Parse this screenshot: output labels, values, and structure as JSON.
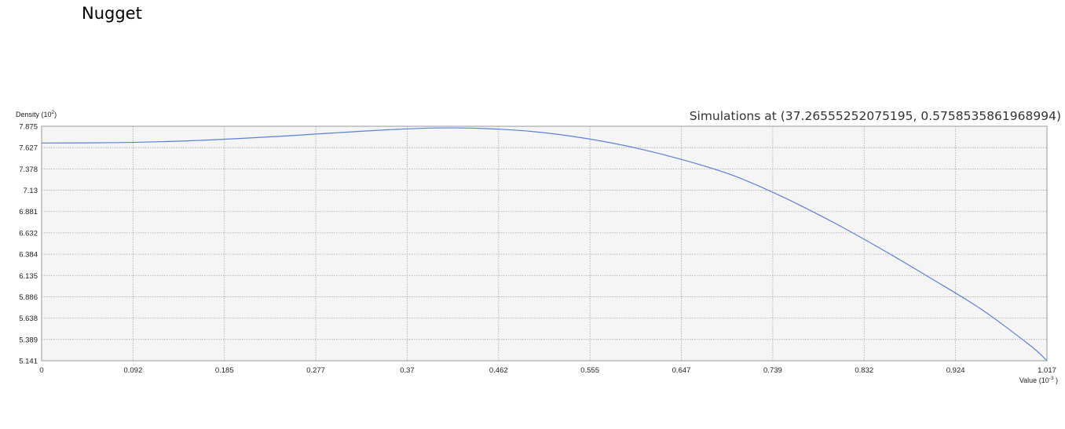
{
  "page": {
    "heading": "Nugget"
  },
  "chart_data": {
    "type": "line",
    "title": "Simulations at (37.26555252075195, 0.5758535861968994)",
    "ylabel": "Density",
    "ylabel_unit": "(10",
    "ylabel_exp": "2",
    "ylabel_close": ")",
    "xlabel": "Value",
    "xlabel_unit": "(10",
    "xlabel_exp": "-3",
    "xlabel_close": " )",
    "xlim": [
      0,
      1.017
    ],
    "ylim": [
      5.141,
      7.875
    ],
    "x_ticks": [
      "0",
      "0.092",
      "0.185",
      "0.277",
      "0.37",
      "0.462",
      "0.555",
      "0.647",
      "0.739",
      "0.832",
      "0.924",
      "1.017"
    ],
    "y_ticks": [
      "7.875",
      "7.627",
      "7.378",
      "7.13",
      "6.881",
      "6.632",
      "6.384",
      "6.135",
      "5.886",
      "5.638",
      "5.389",
      "5.141"
    ],
    "grid": true,
    "line_color": "#5b7fdc",
    "background": "#f5f5f5",
    "series": [
      {
        "x": [
          0,
          0.05,
          0.1,
          0.15,
          0.2,
          0.25,
          0.3,
          0.35,
          0.4,
          0.45,
          0.5,
          0.55,
          0.6,
          0.65,
          0.7,
          0.75,
          0.8,
          0.85,
          0.9,
          0.95,
          1.0,
          1.017
        ],
        "values": [
          7.68,
          7.682,
          7.689,
          7.706,
          7.732,
          7.764,
          7.8,
          7.834,
          7.855,
          7.848,
          7.81,
          7.734,
          7.625,
          7.48,
          7.3,
          7.05,
          6.76,
          6.44,
          6.1,
          5.745,
          5.32,
          5.141
        ]
      }
    ]
  }
}
